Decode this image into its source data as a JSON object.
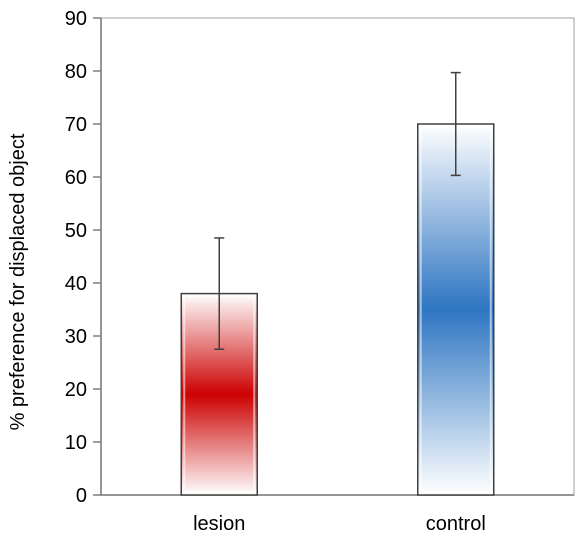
{
  "chart_data": {
    "type": "bar",
    "categories": [
      "lesion",
      "control"
    ],
    "values": [
      38,
      70
    ],
    "errors": [
      10.5,
      9.7
    ],
    "ylabel": "% preference for displaced object",
    "xlabel": "",
    "ylim": [
      0,
      90
    ],
    "yticks": [
      "0",
      "10",
      "20",
      "30",
      "40",
      "50",
      "60",
      "70",
      "80",
      "90"
    ],
    "grid": false,
    "legend": "none",
    "colors": [
      "#cc0000",
      "#2e75c2"
    ]
  }
}
